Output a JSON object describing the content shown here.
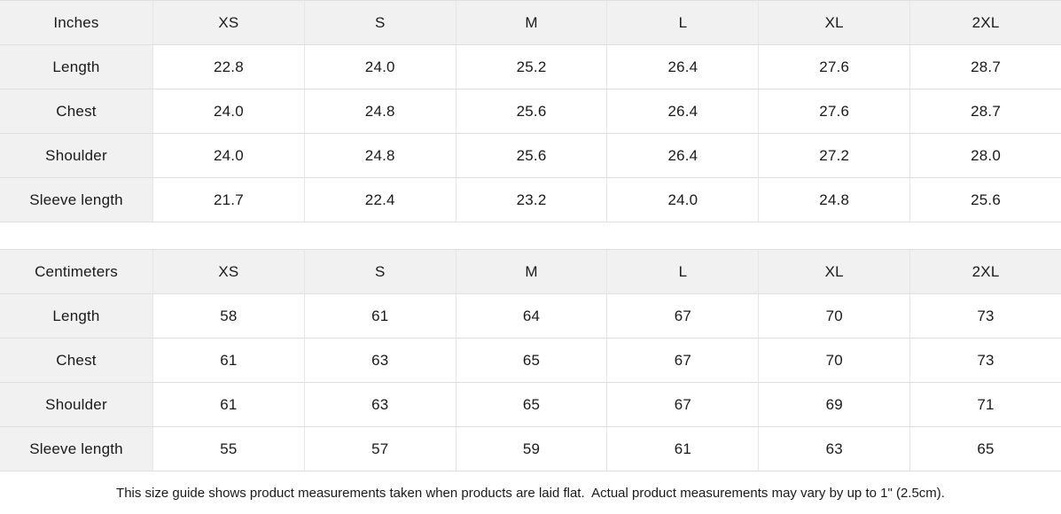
{
  "colors": {
    "header_bg": "#f1f1f1",
    "grid_border": "#dfdfdf",
    "text": "#1a1a1a",
    "background": "#ffffff"
  },
  "tables": [
    {
      "name": "inches",
      "header": [
        "Inches",
        "XS",
        "S",
        "M",
        "L",
        "XL",
        "2XL"
      ],
      "rows": [
        {
          "label": "Length",
          "values": [
            "22.8",
            "24.0",
            "25.2",
            "26.4",
            "27.6",
            "28.7"
          ]
        },
        {
          "label": "Chest",
          "values": [
            "24.0",
            "24.8",
            "25.6",
            "26.4",
            "27.6",
            "28.7"
          ]
        },
        {
          "label": "Shoulder",
          "values": [
            "24.0",
            "24.8",
            "25.6",
            "26.4",
            "27.2",
            "28.0"
          ]
        },
        {
          "label": "Sleeve length",
          "values": [
            "21.7",
            "22.4",
            "23.2",
            "24.0",
            "24.8",
            "25.6"
          ]
        }
      ]
    },
    {
      "name": "centimeters",
      "header": [
        "Centimeters",
        "XS",
        "S",
        "M",
        "L",
        "XL",
        "2XL"
      ],
      "rows": [
        {
          "label": "Length",
          "values": [
            "58",
            "61",
            "64",
            "67",
            "70",
            "73"
          ]
        },
        {
          "label": "Chest",
          "values": [
            "61",
            "63",
            "65",
            "67",
            "70",
            "73"
          ]
        },
        {
          "label": "Shoulder",
          "values": [
            "61",
            "63",
            "65",
            "67",
            "69",
            "71"
          ]
        },
        {
          "label": "Sleeve length",
          "values": [
            "55",
            "57",
            "59",
            "61",
            "63",
            "65"
          ]
        }
      ]
    }
  ],
  "footer": {
    "note": "This size guide shows product measurements taken when products are laid flat.  Actual product measurements may vary by up to 1\" (2.5cm)."
  }
}
